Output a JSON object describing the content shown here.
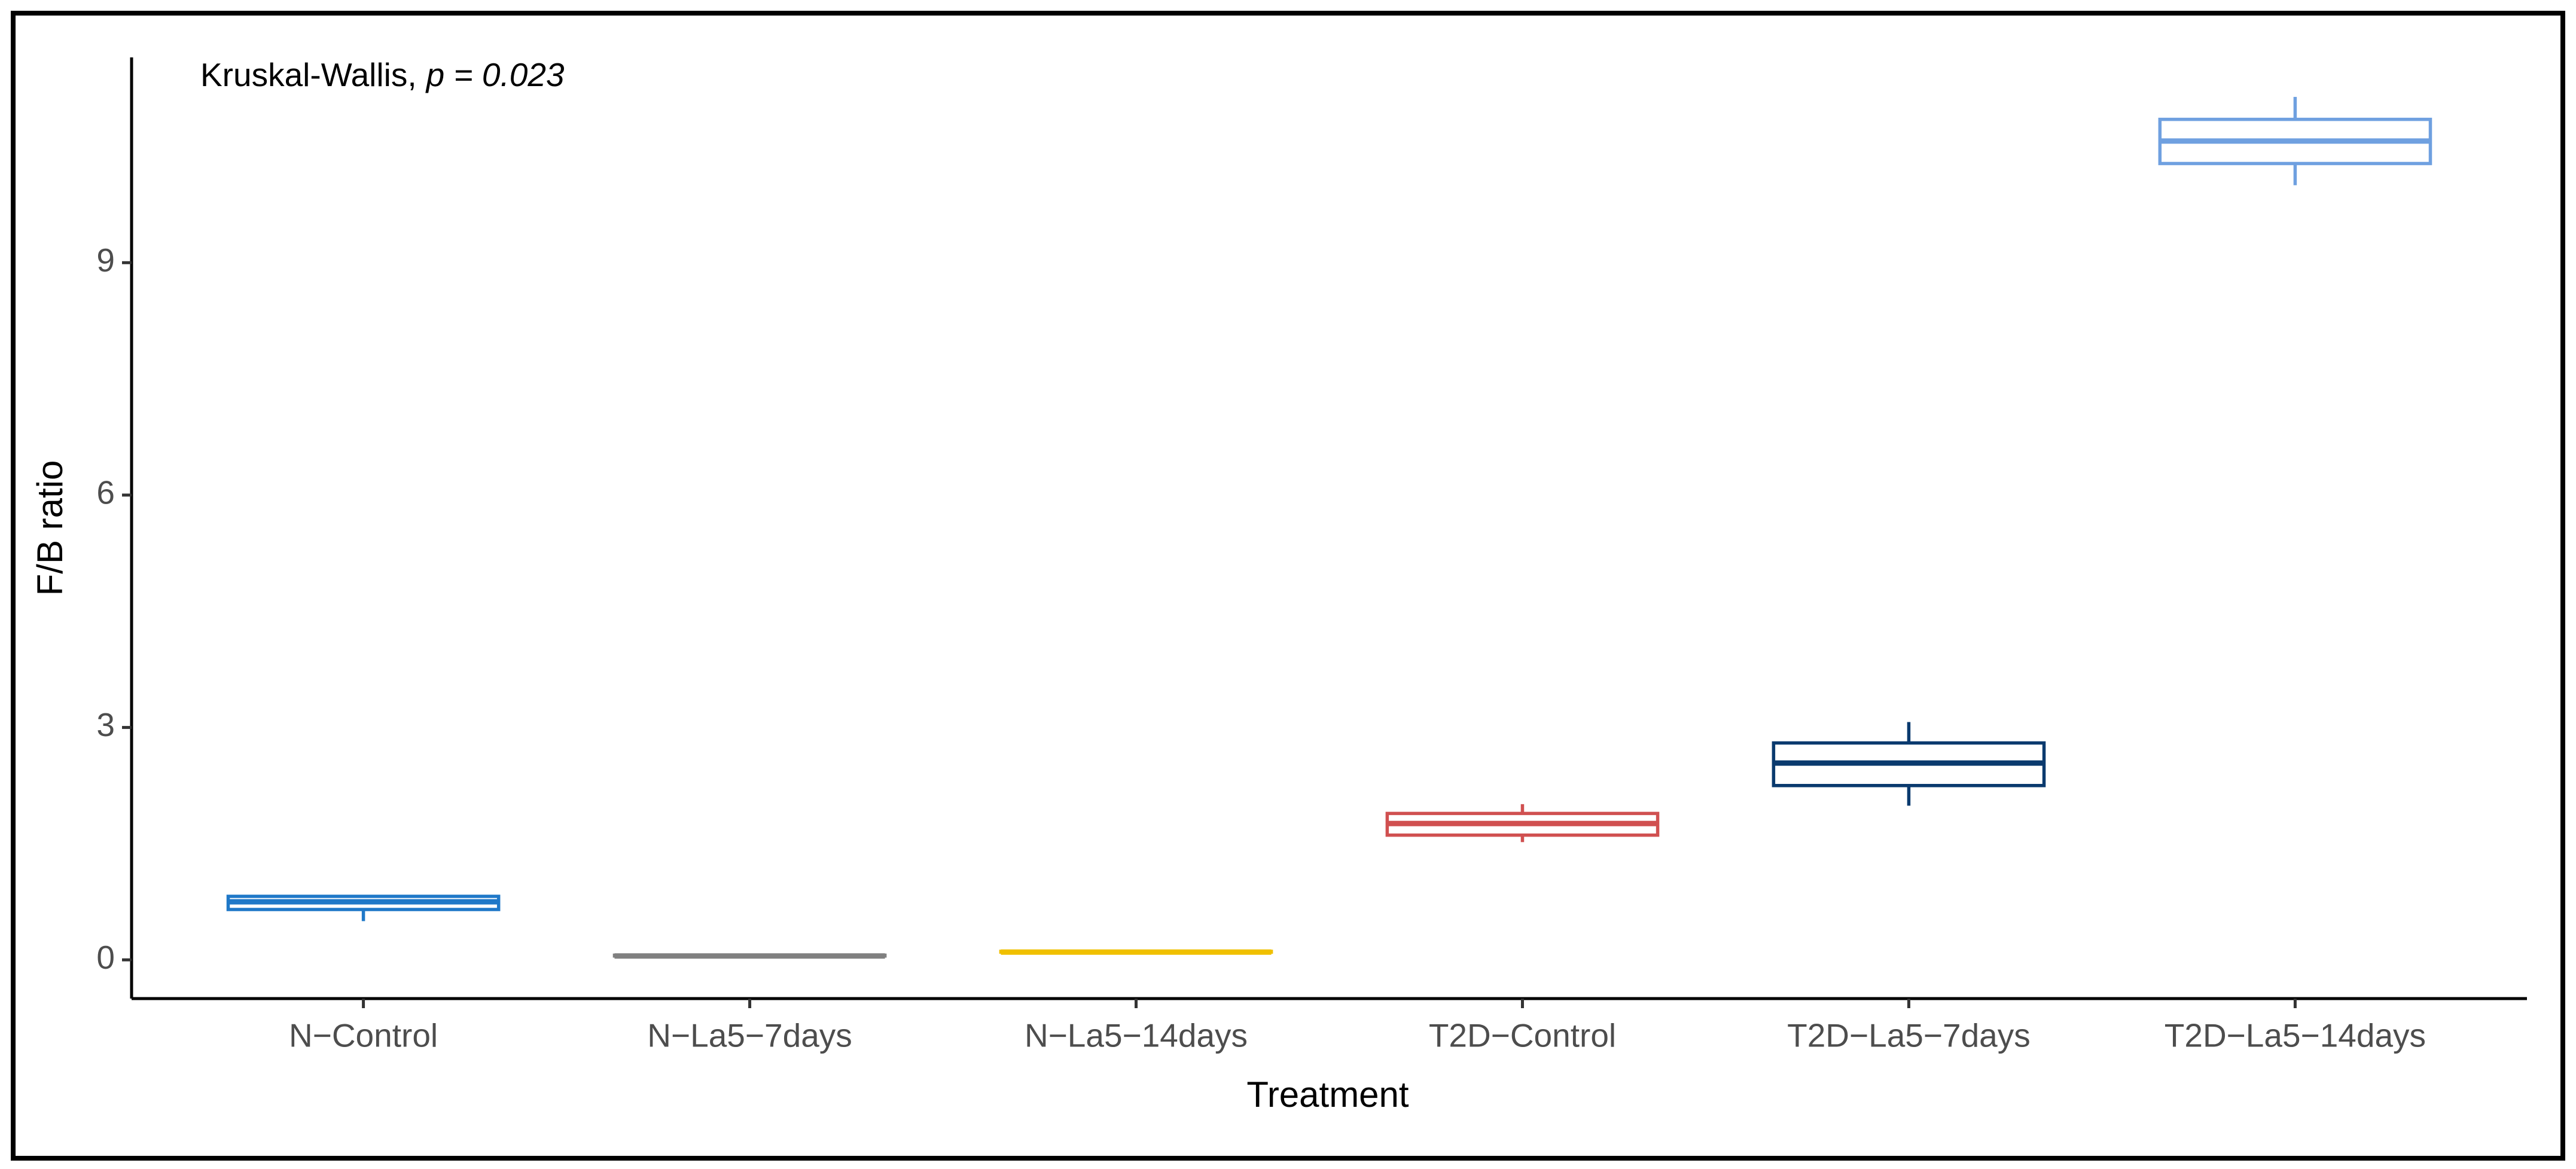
{
  "chart_data": {
    "type": "boxplot",
    "annotation": [
      "Kruskal-Wallis,",
      "p = 0.023"
    ],
    "x_label": "Treatment",
    "y_label": "F/B ratio",
    "categories": [
      "N−Control",
      "N−La5−7days",
      "N−La5−14days",
      "T2D−Control",
      "T2D−La5−7days",
      "T2D−La5−14days"
    ],
    "boxes": [
      {
        "min": 0.5,
        "q1": 0.65,
        "median": 0.75,
        "q3": 0.82,
        "max": 0.83,
        "color": "#1f78c8"
      },
      {
        "min": 0.05,
        "q1": 0.05,
        "median": 0.05,
        "q3": 0.06,
        "max": 0.06,
        "color": "#808080"
      },
      {
        "min": 0.1,
        "q1": 0.1,
        "median": 0.1,
        "q3": 0.11,
        "max": 0.11,
        "color": "#f0c000"
      },
      {
        "min": 1.52,
        "q1": 1.61,
        "median": 1.76,
        "q3": 1.89,
        "max": 2.01,
        "color": "#d05050"
      },
      {
        "min": 1.99,
        "q1": 2.25,
        "median": 2.54,
        "q3": 2.8,
        "max": 3.07,
        "color": "#0a3a6e"
      },
      {
        "min": 10.0,
        "q1": 10.28,
        "median": 10.57,
        "q3": 10.85,
        "max": 11.14,
        "color": "#6fa0e0"
      }
    ],
    "ylim": [
      -0.5,
      11.65
    ],
    "yticks": [
      0,
      3,
      6,
      9
    ],
    "grid": false
  }
}
